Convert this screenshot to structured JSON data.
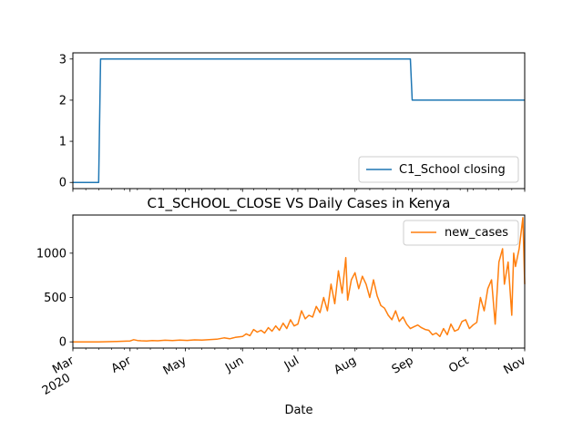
{
  "chart_data": [
    {
      "type": "line",
      "title": "",
      "xlabel": "",
      "ylabel": "",
      "x_range": [
        "2020-03-01",
        "2020-11-01"
      ],
      "ylim": [
        -0.15,
        3.15
      ],
      "yticks": [
        0,
        1,
        2,
        3
      ],
      "grid": false,
      "legend_position": "lower-right",
      "series": [
        {
          "name": "C1_School closing",
          "color": "#1f77b4",
          "x": [
            "2020-03-01",
            "2020-03-15",
            "2020-03-16",
            "2020-08-31",
            "2020-09-01",
            "2020-11-01"
          ],
          "values": [
            0,
            0,
            3,
            3,
            2,
            2
          ]
        }
      ]
    },
    {
      "type": "line",
      "title": "C1_SCHOOL_CLOSE VS Daily Cases in Kenya",
      "xlabel": "Date",
      "ylabel": "",
      "x_range": [
        "2020-03-01",
        "2020-11-01"
      ],
      "ylim": [
        -70,
        1430
      ],
      "yticks": [
        0,
        500,
        1000
      ],
      "grid": false,
      "legend_position": "upper-right",
      "x_ticks": [
        {
          "date": "2020-03-01",
          "label": "Mar",
          "sublabel": "2020"
        },
        {
          "date": "2020-04-01",
          "label": "Apr"
        },
        {
          "date": "2020-05-01",
          "label": "May"
        },
        {
          "date": "2020-06-01",
          "label": "Jun"
        },
        {
          "date": "2020-07-01",
          "label": "Jul"
        },
        {
          "date": "2020-08-01",
          "label": "Aug"
        },
        {
          "date": "2020-09-01",
          "label": "Sep"
        },
        {
          "date": "2020-10-01",
          "label": "Oct"
        },
        {
          "date": "2020-11-01",
          "label": "Nov"
        }
      ],
      "series": [
        {
          "name": "new_cases",
          "color": "#ff7f0e",
          "x": [
            "2020-03-01",
            "2020-03-15",
            "2020-03-20",
            "2020-03-25",
            "2020-03-30",
            "2020-04-01",
            "2020-04-03",
            "2020-04-05",
            "2020-04-07",
            "2020-04-10",
            "2020-04-13",
            "2020-04-16",
            "2020-04-20",
            "2020-04-24",
            "2020-04-28",
            "2020-05-02",
            "2020-05-06",
            "2020-05-10",
            "2020-05-14",
            "2020-05-18",
            "2020-05-22",
            "2020-05-25",
            "2020-05-28",
            "2020-06-01",
            "2020-06-03",
            "2020-06-05",
            "2020-06-07",
            "2020-06-09",
            "2020-06-11",
            "2020-06-13",
            "2020-06-15",
            "2020-06-17",
            "2020-06-19",
            "2020-06-21",
            "2020-06-23",
            "2020-06-25",
            "2020-06-27",
            "2020-06-29",
            "2020-07-01",
            "2020-07-03",
            "2020-07-05",
            "2020-07-07",
            "2020-07-09",
            "2020-07-11",
            "2020-07-13",
            "2020-07-15",
            "2020-07-17",
            "2020-07-19",
            "2020-07-21",
            "2020-07-23",
            "2020-07-25",
            "2020-07-27",
            "2020-07-28",
            "2020-07-30",
            "2020-08-01",
            "2020-08-03",
            "2020-08-05",
            "2020-08-07",
            "2020-08-09",
            "2020-08-11",
            "2020-08-13",
            "2020-08-15",
            "2020-08-17",
            "2020-08-19",
            "2020-08-21",
            "2020-08-23",
            "2020-08-25",
            "2020-08-27",
            "2020-08-29",
            "2020-08-31",
            "2020-09-02",
            "2020-09-04",
            "2020-09-06",
            "2020-09-08",
            "2020-09-10",
            "2020-09-12",
            "2020-09-14",
            "2020-09-16",
            "2020-09-18",
            "2020-09-20",
            "2020-09-22",
            "2020-09-24",
            "2020-09-26",
            "2020-09-28",
            "2020-09-30",
            "2020-10-02",
            "2020-10-04",
            "2020-10-06",
            "2020-10-08",
            "2020-10-10",
            "2020-10-12",
            "2020-10-14",
            "2020-10-16",
            "2020-10-18",
            "2020-10-20",
            "2020-10-21",
            "2020-10-23",
            "2020-10-25",
            "2020-10-26",
            "2020-10-27",
            "2020-10-29",
            "2020-10-31",
            "2020-11-01"
          ],
          "values": [
            0,
            0,
            2,
            4,
            8,
            10,
            25,
            15,
            12,
            10,
            15,
            12,
            18,
            14,
            20,
            16,
            22,
            20,
            25,
            30,
            45,
            35,
            50,
            60,
            90,
            70,
            140,
            110,
            130,
            100,
            160,
            120,
            180,
            130,
            210,
            150,
            250,
            180,
            200,
            350,
            260,
            300,
            280,
            400,
            330,
            500,
            350,
            650,
            430,
            800,
            550,
            950,
            470,
            700,
            780,
            600,
            740,
            650,
            500,
            700,
            520,
            410,
            380,
            300,
            250,
            350,
            230,
            280,
            200,
            150,
            170,
            190,
            160,
            140,
            130,
            80,
            100,
            60,
            150,
            80,
            200,
            120,
            140,
            230,
            250,
            150,
            190,
            220,
            500,
            350,
            600,
            700,
            200,
            900,
            1050,
            650,
            900,
            300,
            1000,
            850,
            1050,
            1400,
            650
          ]
        }
      ]
    }
  ]
}
